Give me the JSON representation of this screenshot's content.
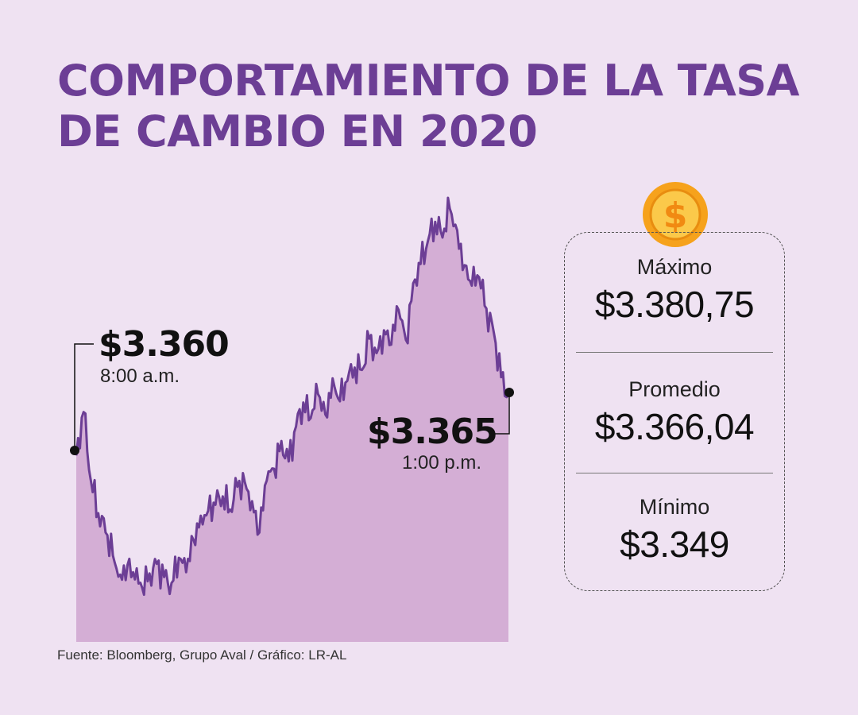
{
  "header": {
    "title_line1": "COMPORTAMIENTO DE LA TASA",
    "title_line2": "DE CAMBIO EN 2020"
  },
  "annotations": {
    "start": {
      "value": "$3.360",
      "time": "8:00 a.m."
    },
    "end": {
      "value": "$3.365",
      "time": "1:00 p.m."
    }
  },
  "stats": {
    "max_label": "Máximo",
    "max_value": "$3.380,75",
    "avg_label": "Promedio",
    "avg_value": "$3.366,04",
    "min_label": "Mínimo",
    "min_value": "$3.349"
  },
  "source": "Fuente: Bloomberg, Grupo Aval / Gráfico: LR-AL",
  "colors": {
    "title": "#6c3e95",
    "background": "#efe2f2",
    "line": "#6c3e95",
    "area": "#d4aed5",
    "coin": "#f6a21c"
  },
  "icons": {
    "coin": "dollar-coin-icon"
  },
  "chart_data": {
    "type": "area",
    "title": "COMPORTAMIENTO DE LA TASA DE CAMBIO EN 2020",
    "xlabel": "",
    "ylabel": "",
    "x_start": "8:00 a.m.",
    "x_end": "1:00 p.m.",
    "ylim": [
      3345,
      3383
    ],
    "grid": false,
    "series": [
      {
        "values": [
          3360,
          3363.6,
          3357.9,
          3355.2,
          3353.6,
          3351.7,
          3350.1,
          3350.9,
          3349.7,
          3349,
          3350.2,
          3351,
          3349.9,
          3349.4,
          3351.5,
          3350.3,
          3353,
          3355,
          3355.4,
          3355.9,
          3356.6,
          3355.5,
          3357.4,
          3357.8,
          3356.2,
          3353.6,
          3357.9,
          3358.9,
          3361.2,
          3359.5,
          3362.4,
          3364.4,
          3363.1,
          3365.1,
          3363.4,
          3366.4,
          3364.5,
          3366.2,
          3367.3,
          3367.1,
          3369.7,
          3368.5,
          3370.4,
          3369.2,
          3372.1,
          3369.6,
          3374.3,
          3375.9,
          3377.8,
          3379.4,
          3378.1,
          3380.5,
          3378.7,
          3375.8,
          3374.1,
          3374.8,
          3372.2,
          3370.2,
          3366.5,
          3365
        ]
      }
    ]
  }
}
